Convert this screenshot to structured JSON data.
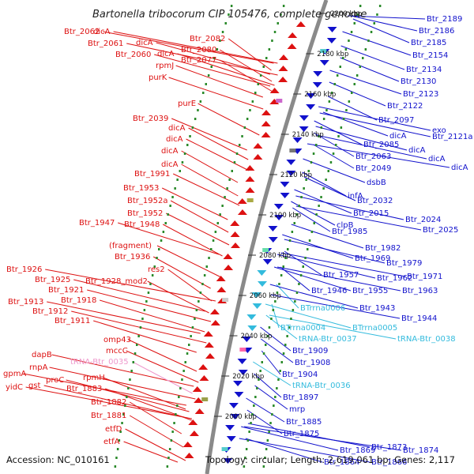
{
  "title": "Bartonella tribocorum CIP 105476, complete genome",
  "footer": {
    "accession": "Accession: NC_010161",
    "topology": "Topology: circular; Length: 2,619,061 bp; Genes: 2,117"
  },
  "colors": {
    "reverse": "#dd1111",
    "forward": "#1111cc",
    "rna_forward": "#33bbdd",
    "rna_reverse": "#ee99cc",
    "ring": "#8a8a8a",
    "dots": "#2a8a2a"
  },
  "ticks": [
    "2200 kbp",
    "2180 kbp",
    "2160 kbp",
    "2140 kbp",
    "2120 kbp",
    "2100 kbp",
    "2080 kbp",
    "2060 kbp",
    "2040 kbp",
    "2020 kbp",
    "2000 kbp"
  ],
  "left_labels": [
    "Btr_2062",
    "dicA",
    "Btr_2061",
    "dicA",
    "Btr_2060",
    "dicA",
    "Btr_2082",
    "Btr_2080",
    "Btr_2077",
    "rpmJ",
    "purK",
    "purE",
    "Btr_2039",
    "dicA",
    "dicA",
    "dicA",
    "dicA",
    "Btr_1991",
    "Btr_1953",
    "Btr_1952a",
    "Btr_1952",
    "Btr_1947",
    "Btr_1948",
    "(fragment)",
    "Btr_1936",
    "res2",
    "Btr_1926",
    "Btr_1925",
    "Btr_1928_mod2",
    "Btr_1921",
    "Btr_1913",
    "Btr_1918",
    "Btr_1912",
    "Btr_1911",
    "omp43",
    "mccC",
    "gpmA",
    "dapB",
    "yidC",
    "gst",
    "tRNA-Btr_0035",
    "rnpA",
    "rpmH",
    "proC",
    "Btr_1883",
    "Btr_1882",
    "Btr_1881",
    "etfD",
    "etfA"
  ],
  "right_labels": [
    "Btr_2189",
    "Btr_2186",
    "Btr_2185",
    "Btr_2154",
    "Btr_2134",
    "Btr_2130",
    "Btr_2123",
    "Btr_2122",
    "Btr_2097",
    "exo",
    "Btr_2121a",
    "dicA",
    "Btr_2085",
    "dicA",
    "dicA",
    "dicA",
    "Btr_2063",
    "Btr_2049",
    "dsbB",
    "infA",
    "Btr_2032",
    "Btr_2015",
    "Btr_2024",
    "Btr_2025",
    "clpB",
    "Btr_1985",
    "Btr_1982",
    "Btr_1969",
    "Btr_1979",
    "Btr_1957",
    "Btr_1962",
    "Btr_1971",
    "Btr_1946",
    "Btr_1955",
    "Btr_1963",
    "BTrrna0006",
    "Btr_1943",
    "Btr_1944",
    "BTrrna0004",
    "BTrrna0005",
    "tRNA-Btr_0037",
    "tRNA-Btr_0038",
    "Btr_1909",
    "Btr_1908",
    "Btr_1904",
    "tRNA-Btr_0036",
    "Btr_1897",
    "mrp",
    "Btr_1885",
    "Btr_1875",
    "Btr_1873",
    "Btr_1869",
    "Btr_1874",
    "Btr_1864",
    "Btr_1866"
  ]
}
